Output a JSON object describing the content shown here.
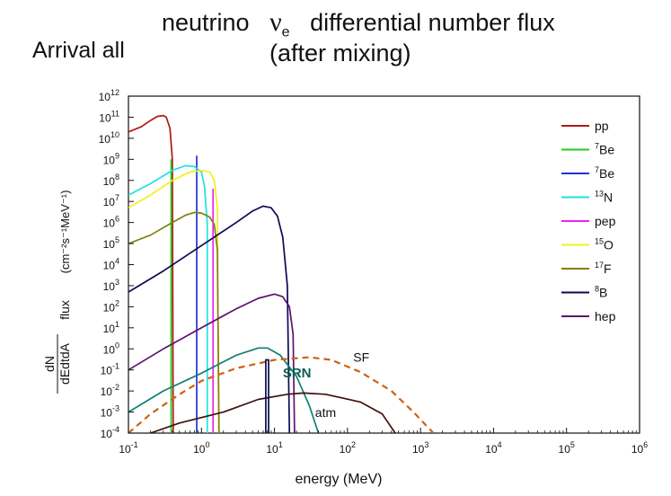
{
  "header": {
    "side_title": "Arrival all",
    "title_prefix": "neutrino",
    "nu_symbol": "ν",
    "nu_subscript": "e",
    "title_suffix": "differential number flux",
    "subtitle": "(after  mixing)"
  },
  "chart_data": {
    "type": "line",
    "title": "neutrino νe differential number flux (after mixing)",
    "xlabel": "energy (MeV)",
    "ylabel": {
      "frac_num": "dN",
      "frac_den": "dEdtdA",
      "flux_word": "flux",
      "units": "(cm⁻²s⁻¹MeV⁻¹)"
    },
    "xscale": "log",
    "yscale": "log",
    "xlim": [
      0.1,
      1000000
    ],
    "ylim": [
      0.0001,
      1000000000000
    ],
    "x_ticks": [
      {
        "value": 0.1,
        "base": "10",
        "exp": "-1"
      },
      {
        "value": 1,
        "base": "10",
        "exp": "0"
      },
      {
        "value": 10,
        "base": "10",
        "exp": "1"
      },
      {
        "value": 100,
        "base": "10",
        "exp": "2"
      },
      {
        "value": 1000,
        "base": "10",
        "exp": "3"
      },
      {
        "value": 10000,
        "base": "10",
        "exp": "4"
      },
      {
        "value": 100000,
        "base": "10",
        "exp": "5"
      },
      {
        "value": 1000000,
        "base": "10",
        "exp": "6"
      }
    ],
    "y_ticks": [
      {
        "value": 1000000000000,
        "base": "10",
        "exp": "12"
      },
      {
        "value": 100000000000,
        "base": "10",
        "exp": "11"
      },
      {
        "value": 10000000000,
        "base": "10",
        "exp": "10"
      },
      {
        "value": 1000000000,
        "base": "10",
        "exp": "9"
      },
      {
        "value": 100000000,
        "base": "10",
        "exp": "8"
      },
      {
        "value": 10000000,
        "base": "10",
        "exp": "7"
      },
      {
        "value": 1000000,
        "base": "10",
        "exp": "6"
      },
      {
        "value": 100000,
        "base": "10",
        "exp": "5"
      },
      {
        "value": 10000,
        "base": "10",
        "exp": "4"
      },
      {
        "value": 1000,
        "base": "10",
        "exp": "3"
      },
      {
        "value": 100,
        "base": "10",
        "exp": "2"
      },
      {
        "value": 10,
        "base": "10",
        "exp": "1"
      },
      {
        "value": 1,
        "base": "10",
        "exp": "0"
      },
      {
        "value": 0.1,
        "base": "10",
        "exp": "-1"
      },
      {
        "value": 0.01,
        "base": "10",
        "exp": "-2"
      },
      {
        "value": 0.001,
        "base": "10",
        "exp": "-3"
      },
      {
        "value": 0.0001,
        "base": "10",
        "exp": "-4"
      }
    ],
    "legend_position": "top-right",
    "legend": [
      {
        "sup": "",
        "name": "pp",
        "color": "#b01818"
      },
      {
        "sup": "7",
        "name": "Be",
        "color": "#22cc22"
      },
      {
        "sup": "7",
        "name": "Be",
        "color": "#2233cc"
      },
      {
        "sup": "13",
        "name": "N",
        "color": "#22e0e0"
      },
      {
        "sup": "",
        "name": "pep",
        "color": "#ee22ee"
      },
      {
        "sup": "15",
        "name": "O",
        "color": "#f0f020"
      },
      {
        "sup": "17",
        "name": "F",
        "color": "#808010"
      },
      {
        "sup": "8",
        "name": "B",
        "color": "#0a0a55"
      },
      {
        "sup": "",
        "name": "hep",
        "color": "#601070"
      }
    ],
    "series": [
      {
        "name": "pp",
        "color": "#b01818",
        "points": [
          [
            0.1,
            20000000000
          ],
          [
            0.15,
            35000000000
          ],
          [
            0.2,
            70000000000
          ],
          [
            0.25,
            110000000000
          ],
          [
            0.3,
            120000000000
          ],
          [
            0.33,
            100000000000
          ],
          [
            0.37,
            30000000000
          ],
          [
            0.4,
            1000000000
          ],
          [
            0.41,
            0.0001
          ]
        ]
      },
      {
        "name": "7Be (0.384 MeV)",
        "color": "#22cc22",
        "points": [
          [
            0.384,
            0.0001
          ],
          [
            0.384,
            1000000000
          ]
        ]
      },
      {
        "name": "7Be (0.862 MeV)",
        "color": "#2233cc",
        "points": [
          [
            0.862,
            0.0001
          ],
          [
            0.862,
            1500000000
          ]
        ]
      },
      {
        "name": "13N",
        "color": "#22e0e0",
        "points": [
          [
            0.1,
            20000000
          ],
          [
            0.2,
            70000000
          ],
          [
            0.4,
            300000000
          ],
          [
            0.6,
            500000000
          ],
          [
            0.8,
            450000000
          ],
          [
            1.0,
            250000000
          ],
          [
            1.1,
            50000000
          ],
          [
            1.2,
            1000000
          ],
          [
            1.2,
            0.0001
          ]
        ]
      },
      {
        "name": "pep",
        "color": "#ee22ee",
        "points": [
          [
            1.44,
            0.0001
          ],
          [
            1.44,
            40000000
          ]
        ]
      },
      {
        "name": "15O",
        "color": "#f0f020",
        "points": [
          [
            0.1,
            5000000
          ],
          [
            0.2,
            20000000
          ],
          [
            0.4,
            100000000
          ],
          [
            0.7,
            250000000
          ],
          [
            1.0,
            300000000
          ],
          [
            1.3,
            250000000
          ],
          [
            1.5,
            100000000
          ],
          [
            1.65,
            5000000
          ],
          [
            1.73,
            0.0001
          ]
        ]
      },
      {
        "name": "17F",
        "color": "#808010",
        "points": [
          [
            0.1,
            100000
          ],
          [
            0.2,
            250000
          ],
          [
            0.4,
            1000000
          ],
          [
            0.6,
            2200000
          ],
          [
            0.8,
            3000000
          ],
          [
            1.0,
            2800000
          ],
          [
            1.3,
            1800000
          ],
          [
            1.5,
            800000
          ],
          [
            1.65,
            50000
          ],
          [
            1.74,
            0.0001
          ]
        ]
      },
      {
        "name": "8B",
        "color": "#0a0a55",
        "points": [
          [
            0.1,
            500
          ],
          [
            0.3,
            5000
          ],
          [
            1.0,
            80000
          ],
          [
            3.0,
            1000000
          ],
          [
            5.0,
            3500000
          ],
          [
            7.0,
            6000000
          ],
          [
            9.0,
            5000000
          ],
          [
            11.0,
            2000000
          ],
          [
            13.0,
            200000
          ],
          [
            15.0,
            1000
          ],
          [
            16.0,
            0.0001
          ]
        ]
      },
      {
        "name": "hep",
        "color": "#601070",
        "points": [
          [
            0.1,
            0.1
          ],
          [
            0.3,
            1
          ],
          [
            1.0,
            10
          ],
          [
            3.0,
            80
          ],
          [
            6.0,
            250
          ],
          [
            10.0,
            400
          ],
          [
            13.0,
            300
          ],
          [
            16.0,
            100
          ],
          [
            18.0,
            5
          ],
          [
            18.8,
            0.0001
          ]
        ]
      },
      {
        "name": "SRN",
        "color": "#108070",
        "points": [
          [
            0.1,
            0.001
          ],
          [
            0.3,
            0.01
          ],
          [
            1.0,
            0.07
          ],
          [
            3.0,
            0.5
          ],
          [
            6.0,
            1.1
          ],
          [
            8.0,
            1.1
          ],
          [
            12.0,
            0.5
          ],
          [
            20.0,
            0.05
          ],
          [
            30.0,
            0.002
          ],
          [
            40.0,
            0.0001
          ]
        ]
      },
      {
        "name": "SF",
        "color": "#d06010",
        "dashed": true,
        "points": [
          [
            0.1,
            0.0001
          ],
          [
            0.2,
            0.0008
          ],
          [
            0.5,
            0.007
          ],
          [
            1.0,
            0.03
          ],
          [
            3.0,
            0.12
          ],
          [
            10.0,
            0.3
          ],
          [
            30.0,
            0.4
          ],
          [
            60.0,
            0.3
          ],
          [
            150.0,
            0.08
          ],
          [
            400.0,
            0.01
          ],
          [
            800.0,
            0.001
          ],
          [
            1500.0,
            0.0001
          ]
        ]
      },
      {
        "name": "atm",
        "color": "#401010",
        "points": [
          [
            0.2,
            0.0001
          ],
          [
            0.5,
            0.0003
          ],
          [
            2.0,
            0.001
          ],
          [
            6.0,
            0.004
          ],
          [
            15.0,
            0.007
          ],
          [
            25.0,
            0.008
          ],
          [
            50.0,
            0.007
          ],
          [
            150.0,
            0.003
          ],
          [
            300.0,
            0.0008
          ],
          [
            450.0,
            0.0001
          ]
        ]
      },
      {
        "name": "hep-line",
        "color": "#0a0a55",
        "points": [
          [
            7.6,
            0.0001
          ],
          [
            7.6,
            0.3
          ],
          [
            8.3,
            0.3
          ],
          [
            8.3,
            0.0001
          ]
        ]
      }
    ],
    "annotations": [
      {
        "text": "SF",
        "x": 120,
        "y": 0.25,
        "color": "#111111",
        "bold": false
      },
      {
        "text": "SRN",
        "x": 13,
        "y": 0.045,
        "color": "#0d5e52",
        "bold": true
      },
      {
        "text": "atm",
        "x": 36,
        "y": 0.0006,
        "color": "#111111",
        "bold": false
      }
    ]
  }
}
